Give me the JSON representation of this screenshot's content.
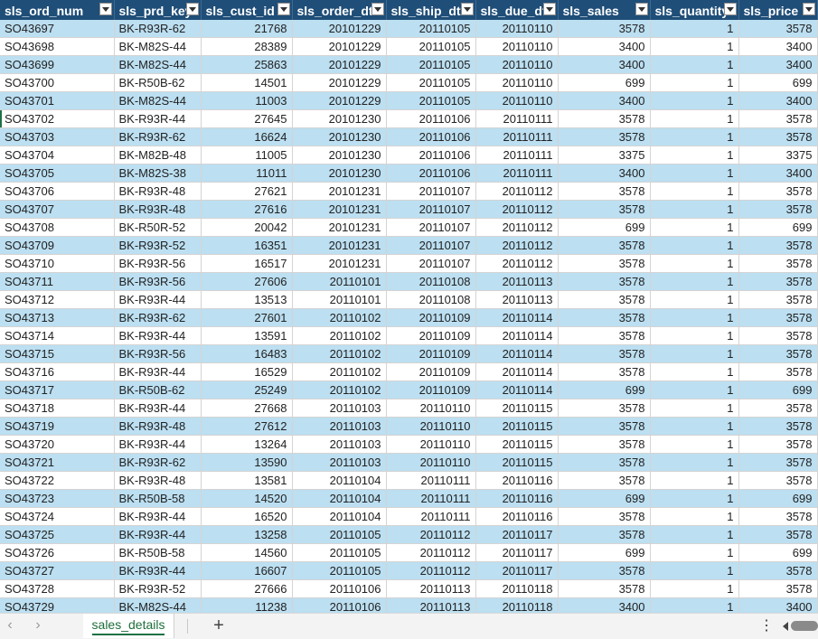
{
  "columns": [
    {
      "label": "sls_ord_num",
      "align": "left"
    },
    {
      "label": "sls_prd_key",
      "align": "left"
    },
    {
      "label": "sls_cust_id",
      "align": "num"
    },
    {
      "label": "sls_order_dt",
      "align": "num"
    },
    {
      "label": "sls_ship_dt",
      "align": "num"
    },
    {
      "label": "sls_due_dt",
      "align": "num"
    },
    {
      "label": "sls_sales",
      "align": "num"
    },
    {
      "label": "sls_quantity",
      "align": "num"
    },
    {
      "label": "sls_price",
      "align": "num"
    }
  ],
  "rows": [
    [
      "SO43697",
      "BK-R93R-62",
      "21768",
      "20101229",
      "20110105",
      "20110110",
      "3578",
      "1",
      "3578"
    ],
    [
      "SO43698",
      "BK-M82S-44",
      "28389",
      "20101229",
      "20110105",
      "20110110",
      "3400",
      "1",
      "3400"
    ],
    [
      "SO43699",
      "BK-M82S-44",
      "25863",
      "20101229",
      "20110105",
      "20110110",
      "3400",
      "1",
      "3400"
    ],
    [
      "SO43700",
      "BK-R50B-62",
      "14501",
      "20101229",
      "20110105",
      "20110110",
      "699",
      "1",
      "699"
    ],
    [
      "SO43701",
      "BK-M82S-44",
      "11003",
      "20101229",
      "20110105",
      "20110110",
      "3400",
      "1",
      "3400"
    ],
    [
      "SO43702",
      "BK-R93R-44",
      "27645",
      "20101230",
      "20110106",
      "20110111",
      "3578",
      "1",
      "3578"
    ],
    [
      "SO43703",
      "BK-R93R-62",
      "16624",
      "20101230",
      "20110106",
      "20110111",
      "3578",
      "1",
      "3578"
    ],
    [
      "SO43704",
      "BK-M82B-48",
      "11005",
      "20101230",
      "20110106",
      "20110111",
      "3375",
      "1",
      "3375"
    ],
    [
      "SO43705",
      "BK-M82S-38",
      "11011",
      "20101230",
      "20110106",
      "20110111",
      "3400",
      "1",
      "3400"
    ],
    [
      "SO43706",
      "BK-R93R-48",
      "27621",
      "20101231",
      "20110107",
      "20110112",
      "3578",
      "1",
      "3578"
    ],
    [
      "SO43707",
      "BK-R93R-48",
      "27616",
      "20101231",
      "20110107",
      "20110112",
      "3578",
      "1",
      "3578"
    ],
    [
      "SO43708",
      "BK-R50R-52",
      "20042",
      "20101231",
      "20110107",
      "20110112",
      "699",
      "1",
      "699"
    ],
    [
      "SO43709",
      "BK-R93R-52",
      "16351",
      "20101231",
      "20110107",
      "20110112",
      "3578",
      "1",
      "3578"
    ],
    [
      "SO43710",
      "BK-R93R-56",
      "16517",
      "20101231",
      "20110107",
      "20110112",
      "3578",
      "1",
      "3578"
    ],
    [
      "SO43711",
      "BK-R93R-56",
      "27606",
      "20110101",
      "20110108",
      "20110113",
      "3578",
      "1",
      "3578"
    ],
    [
      "SO43712",
      "BK-R93R-44",
      "13513",
      "20110101",
      "20110108",
      "20110113",
      "3578",
      "1",
      "3578"
    ],
    [
      "SO43713",
      "BK-R93R-62",
      "27601",
      "20110102",
      "20110109",
      "20110114",
      "3578",
      "1",
      "3578"
    ],
    [
      "SO43714",
      "BK-R93R-44",
      "13591",
      "20110102",
      "20110109",
      "20110114",
      "3578",
      "1",
      "3578"
    ],
    [
      "SO43715",
      "BK-R93R-56",
      "16483",
      "20110102",
      "20110109",
      "20110114",
      "3578",
      "1",
      "3578"
    ],
    [
      "SO43716",
      "BK-R93R-44",
      "16529",
      "20110102",
      "20110109",
      "20110114",
      "3578",
      "1",
      "3578"
    ],
    [
      "SO43717",
      "BK-R50B-62",
      "25249",
      "20110102",
      "20110109",
      "20110114",
      "699",
      "1",
      "699"
    ],
    [
      "SO43718",
      "BK-R93R-44",
      "27668",
      "20110103",
      "20110110",
      "20110115",
      "3578",
      "1",
      "3578"
    ],
    [
      "SO43719",
      "BK-R93R-48",
      "27612",
      "20110103",
      "20110110",
      "20110115",
      "3578",
      "1",
      "3578"
    ],
    [
      "SO43720",
      "BK-R93R-44",
      "13264",
      "20110103",
      "20110110",
      "20110115",
      "3578",
      "1",
      "3578"
    ],
    [
      "SO43721",
      "BK-R93R-62",
      "13590",
      "20110103",
      "20110110",
      "20110115",
      "3578",
      "1",
      "3578"
    ],
    [
      "SO43722",
      "BK-R93R-48",
      "13581",
      "20110104",
      "20110111",
      "20110116",
      "3578",
      "1",
      "3578"
    ],
    [
      "SO43723",
      "BK-R50B-58",
      "14520",
      "20110104",
      "20110111",
      "20110116",
      "699",
      "1",
      "699"
    ],
    [
      "SO43724",
      "BK-R93R-44",
      "16520",
      "20110104",
      "20110111",
      "20110116",
      "3578",
      "1",
      "3578"
    ],
    [
      "SO43725",
      "BK-R93R-44",
      "13258",
      "20110105",
      "20110112",
      "20110117",
      "3578",
      "1",
      "3578"
    ],
    [
      "SO43726",
      "BK-R50B-58",
      "14560",
      "20110105",
      "20110112",
      "20110117",
      "699",
      "1",
      "699"
    ],
    [
      "SO43727",
      "BK-R93R-44",
      "16607",
      "20110105",
      "20110112",
      "20110117",
      "3578",
      "1",
      "3578"
    ],
    [
      "SO43728",
      "BK-R93R-52",
      "27666",
      "20110106",
      "20110113",
      "20110118",
      "3578",
      "1",
      "3578"
    ],
    [
      "SO43729",
      "BK-M82S-44",
      "11238",
      "20110106",
      "20110113",
      "20110118",
      "3400",
      "1",
      "3400"
    ]
  ],
  "sheet_tabs": [
    {
      "label": "sales_details",
      "active": true
    }
  ],
  "icons": {
    "filter": "dropdown-arrow",
    "scroll_left": "chevron-left",
    "scroll_right": "chevron-right",
    "add_sheet": "plus",
    "more": "vertical-ellipsis",
    "hscroll_left": "triangle-left"
  },
  "colors": {
    "header_bg": "#1f4e78",
    "band_bg": "#bcdff1",
    "accent": "#1e7145"
  }
}
